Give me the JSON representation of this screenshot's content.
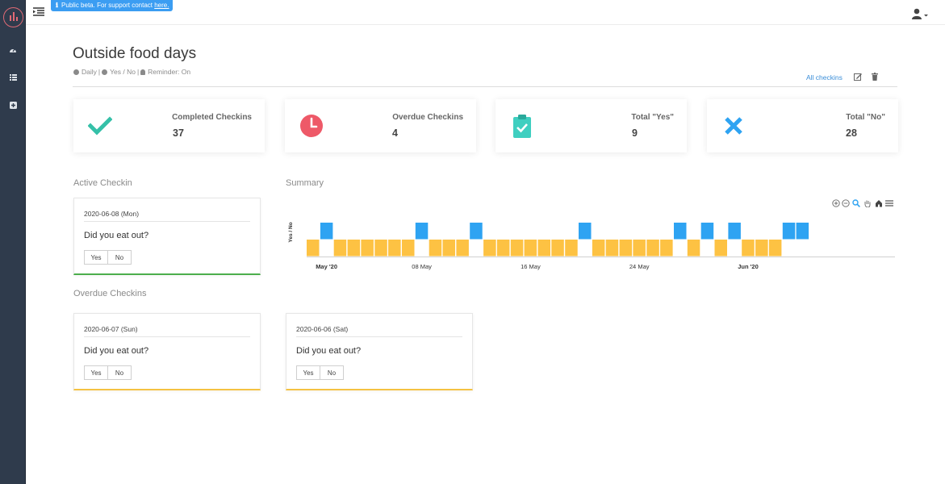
{
  "beta_banner": {
    "text": "Public beta. For support contact ",
    "link": "here."
  },
  "header": {
    "title": "Outside food days",
    "meta": {
      "frequency": "Daily",
      "type": "Yes / No",
      "reminder": "Reminder: On"
    },
    "all_checkins": "All checkins"
  },
  "stats": [
    {
      "label": "Completed Checkins",
      "value": "37",
      "icon": "check-icon",
      "color": "#35c0a8"
    },
    {
      "label": "Overdue Checkins",
      "value": "4",
      "icon": "clock-icon",
      "color": "#ee5968"
    },
    {
      "label": "Total \"Yes\"",
      "value": "9",
      "icon": "clipboard-check-icon",
      "color": "#3fcfc0"
    },
    {
      "label": "Total \"No\"",
      "value": "28",
      "icon": "x-icon",
      "color": "#2ea3f2"
    }
  ],
  "sections": {
    "active": "Active Checkin",
    "summary": "Summary",
    "overdue": "Overdue Checkins"
  },
  "active_checkin": {
    "date": "2020-06-08 (Mon)",
    "question": "Did you eat out?",
    "yes": "Yes",
    "no": "No"
  },
  "overdue_checkins": [
    {
      "date": "2020-06-07 (Sun)",
      "question": "Did you eat out?",
      "yes": "Yes",
      "no": "No"
    },
    {
      "date": "2020-06-06 (Sat)",
      "question": "Did you eat out?",
      "yes": "Yes",
      "no": "No"
    }
  ],
  "colors": {
    "yes": "#2ea3f2",
    "no": "#fdc243",
    "accent": "#3b8ed8",
    "sidebar": "#2f3b4c"
  },
  "chart_data": {
    "type": "bar",
    "ylabel": "Yes / No",
    "x_ticks": [
      "May '20",
      "08 May",
      "16 May",
      "24 May",
      "Jun '20"
    ],
    "x_tick_dates": [
      "2020-05-01",
      "2020-05-08",
      "2020-05-16",
      "2020-05-24",
      "2020-06-01"
    ],
    "x_start": "2020-04-30",
    "series": [
      {
        "name": "Yes",
        "color": "#2ea3f2",
        "dates": [
          "2020-05-01",
          "2020-05-08",
          "2020-05-12",
          "2020-05-20",
          "2020-05-27",
          "2020-05-29",
          "2020-05-31",
          "2020-06-04",
          "2020-06-05"
        ]
      },
      {
        "name": "No",
        "color": "#fdc243",
        "dates": [
          "2020-04-30",
          "2020-05-02",
          "2020-05-03",
          "2020-05-04",
          "2020-05-05",
          "2020-05-06",
          "2020-05-07",
          "2020-05-09",
          "2020-05-10",
          "2020-05-11",
          "2020-05-13",
          "2020-05-14",
          "2020-05-15",
          "2020-05-16",
          "2020-05-17",
          "2020-05-18",
          "2020-05-19",
          "2020-05-21",
          "2020-05-22",
          "2020-05-23",
          "2020-05-24",
          "2020-05-25",
          "2020-05-26",
          "2020-05-28",
          "2020-05-30",
          "2020-06-01",
          "2020-06-02",
          "2020-06-03"
        ]
      }
    ]
  }
}
